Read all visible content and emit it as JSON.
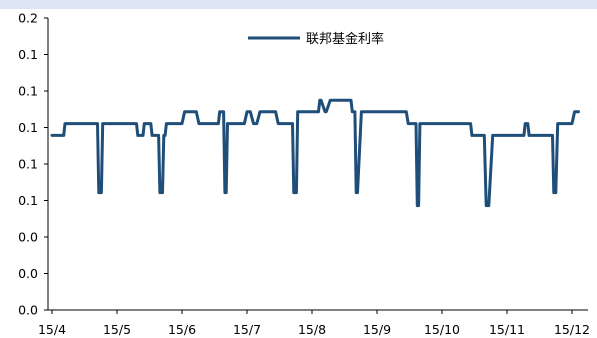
{
  "chart_data": {
    "type": "line",
    "title": "",
    "xlabel": "",
    "ylabel": "",
    "ylim": [
      0,
      0.2
    ],
    "y_tick_labels": [
      "0.2",
      "0.1",
      "0.1",
      "0.1",
      "0.1",
      "0.1",
      "0.0",
      "0.0",
      "0.0"
    ],
    "x_tick_labels": [
      "15/4",
      "15/5",
      "15/6",
      "15/7",
      "15/8",
      "15/9",
      "15/10",
      "15/11",
      "15/12"
    ],
    "x_range": [
      0,
      8.3
    ],
    "grid": false,
    "legend": "top-center",
    "line_color": "#1f4e79",
    "series": [
      {
        "name": "联邦基金利率",
        "x": [
          0,
          0.18,
          0.2,
          0.7,
          0.72,
          0.76,
          0.78,
          1.3,
          1.32,
          1.4,
          1.42,
          1.52,
          1.54,
          1.64,
          1.66,
          1.7,
          1.72,
          1.74,
          1.76,
          1.82,
          2.0,
          2.04,
          2.22,
          2.26,
          2.56,
          2.58,
          2.64,
          2.66,
          2.68,
          2.7,
          2.72,
          2.74,
          2.96,
          3.0,
          3.05,
          3.1,
          3.15,
          3.2,
          3.44,
          3.48,
          3.7,
          3.72,
          3.76,
          3.78,
          4.1,
          4.12,
          4.14,
          4.2,
          4.22,
          4.28,
          4.3,
          4.34,
          4.6,
          4.62,
          4.66,
          4.68,
          4.7,
          4.76,
          5.45,
          5.48,
          5.6,
          5.62,
          5.64,
          5.66,
          6.44,
          6.46,
          6.65,
          6.68,
          6.7,
          6.72,
          6.78,
          6.8,
          7.26,
          7.28,
          7.32,
          7.34,
          7.7,
          7.72,
          7.75,
          7.78,
          7.8,
          8.0,
          8.04,
          8.1
        ],
        "values": [
          0.1196,
          0.1196,
          0.1277,
          0.1277,
          0.0804,
          0.0804,
          0.1277,
          0.1277,
          0.1196,
          0.1196,
          0.1277,
          0.1277,
          0.1196,
          0.1196,
          0.0804,
          0.0804,
          0.1196,
          0.1196,
          0.1277,
          0.1277,
          0.1277,
          0.1358,
          0.1358,
          0.1277,
          0.1277,
          0.1358,
          0.1358,
          0.0804,
          0.0804,
          0.1277,
          0.1277,
          0.1277,
          0.1277,
          0.1358,
          0.1358,
          0.1277,
          0.1277,
          0.1358,
          0.1358,
          0.1277,
          0.1277,
          0.0804,
          0.0804,
          0.1358,
          0.1358,
          0.1436,
          0.1436,
          0.1358,
          0.1358,
          0.1436,
          0.1436,
          0.1436,
          0.1436,
          0.1358,
          0.1358,
          0.0804,
          0.0804,
          0.1358,
          0.1358,
          0.1277,
          0.1277,
          0.0715,
          0.0715,
          0.1277,
          0.1277,
          0.1196,
          0.1196,
          0.0715,
          0.0715,
          0.0715,
          0.1196,
          0.1196,
          0.1196,
          0.1277,
          0.1277,
          0.1196,
          0.1196,
          0.0804,
          0.0804,
          0.1277,
          0.1277,
          0.1277,
          0.1358,
          0.1358
        ]
      }
    ]
  }
}
